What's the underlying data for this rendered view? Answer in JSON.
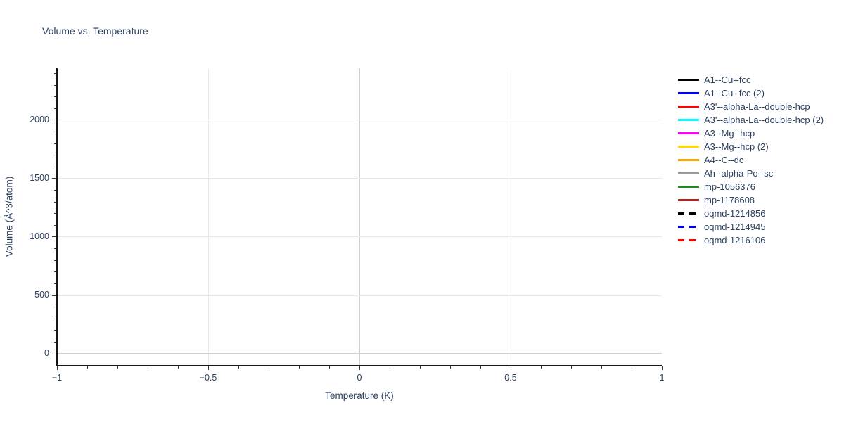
{
  "page": {
    "background": "#ffffff"
  },
  "colors": {
    "text": "#2a3f5f",
    "axis_line": "#161616",
    "tick": "#333333",
    "gridline": "#e8e8e8",
    "zeroline": "#d0d0d0"
  },
  "chart_data": {
    "type": "line",
    "title": "Volume vs. Temperature",
    "xlabel": "Temperature (K)",
    "ylabel": "Volume (Å^3/atom)",
    "xlim": [
      -1,
      1
    ],
    "ylim": [
      -96,
      2445
    ],
    "x_ticks": [
      -1,
      -0.5,
      0,
      0.5,
      1
    ],
    "x_tick_labels": [
      "−1",
      "−0.5",
      "0",
      "0.5",
      "1"
    ],
    "x_minor_step": 0.1,
    "y_ticks": [
      0,
      500,
      1000,
      1500,
      2000
    ],
    "y_tick_labels": [
      "0",
      "500",
      "1000",
      "1500",
      "2000"
    ],
    "y_minor_step": 100,
    "grid": true,
    "zerolines": true,
    "legend_position": "right-outside",
    "plot_content": "empty — no data curves visible within the axis range",
    "series": [
      {
        "name": "A1--Cu--fcc",
        "color": "#000000",
        "dash": "solid",
        "values": []
      },
      {
        "name": "A1--Cu--fcc (2)",
        "color": "#0000ff",
        "dash": "solid",
        "values": []
      },
      {
        "name": "A3'--alpha-La--double-hcp",
        "color": "#ff0000",
        "dash": "solid",
        "values": []
      },
      {
        "name": "A3'--alpha-La--double-hcp (2)",
        "color": "#00ffff",
        "dash": "solid",
        "values": []
      },
      {
        "name": "A3--Mg--hcp",
        "color": "#ff00ff",
        "dash": "solid",
        "values": []
      },
      {
        "name": "A3--Mg--hcp (2)",
        "color": "#ffd700",
        "dash": "solid",
        "values": []
      },
      {
        "name": "A4--C--dc",
        "color": "#ffa500",
        "dash": "solid",
        "values": []
      },
      {
        "name": "Ah--alpha-Po--sc",
        "color": "#9a9a9a",
        "dash": "solid",
        "values": []
      },
      {
        "name": "mp-1056376",
        "color": "#1e8b1e",
        "dash": "solid",
        "values": []
      },
      {
        "name": "mp-1178608",
        "color": "#b22222",
        "dash": "solid",
        "values": []
      },
      {
        "name": "oqmd-1214856",
        "color": "#000000",
        "dash": "dashed",
        "values": []
      },
      {
        "name": "oqmd-1214945",
        "color": "#0000ff",
        "dash": "dashed",
        "values": []
      },
      {
        "name": "oqmd-1216106",
        "color": "#ff0000",
        "dash": "dashed",
        "values": []
      }
    ]
  }
}
